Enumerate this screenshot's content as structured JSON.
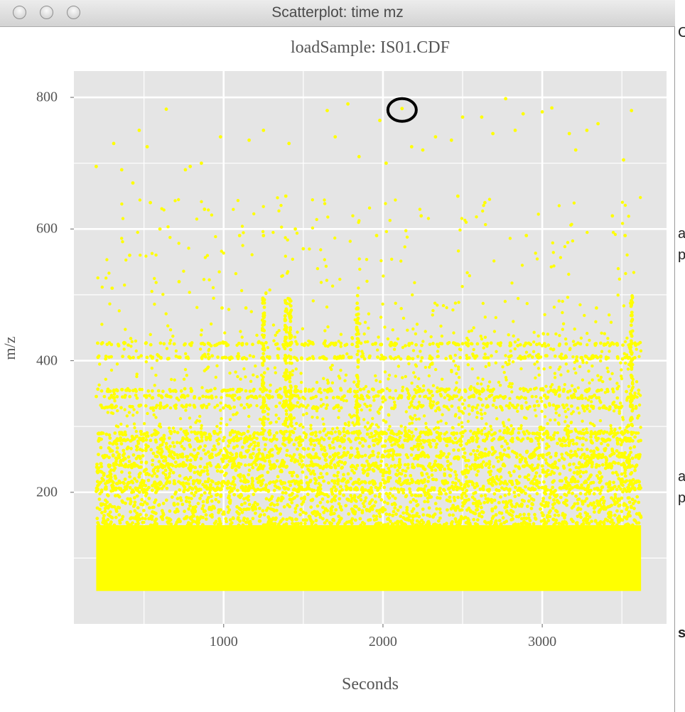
{
  "window": {
    "title": "Scatterplot: time mz",
    "buttons": [
      "close",
      "minimize",
      "zoom"
    ]
  },
  "colors": {
    "panel": "#e5e5e5",
    "grid": "#ffffff",
    "points": "#ffff00",
    "highlight_ring": "#000000"
  },
  "side_text": [
    "C",
    "a",
    "p",
    "a",
    "p",
    "s"
  ],
  "chart_data": {
    "type": "scatter",
    "title": "loadSample:  IS01.CDF",
    "xlabel": "Seconds",
    "ylabel": "m/z",
    "xlim": [
      60,
      3780
    ],
    "ylim": [
      0,
      840
    ],
    "xticks": [
      1000,
      2000,
      3000
    ],
    "yticks": [
      200,
      400,
      600,
      800
    ],
    "grid": true,
    "legend": "none",
    "highlighted_point": {
      "x": 2120,
      "y": 783
    },
    "x_range_observed": [
      200,
      3620
    ],
    "y_range_observed": [
      50,
      800
    ],
    "dense_bands_mz": [
      280,
      290,
      330,
      345,
      355,
      405,
      425,
      205,
      215,
      240,
      255
    ],
    "series": [
      {
        "points": [
          [
            200,
            695
          ],
          [
            310,
            730
          ],
          [
            360,
            690
          ],
          [
            430,
            670
          ],
          [
            470,
            750
          ],
          [
            520,
            725
          ],
          [
            640,
            782
          ],
          [
            790,
            695
          ],
          [
            880,
            630
          ],
          [
            980,
            740
          ],
          [
            1160,
            735
          ],
          [
            1250,
            750
          ],
          [
            1410,
            730
          ],
          [
            1450,
            600
          ],
          [
            1650,
            780
          ],
          [
            1700,
            740
          ],
          [
            1780,
            790
          ],
          [
            1850,
            710
          ],
          [
            1980,
            765
          ],
          [
            2020,
            700
          ],
          [
            2120,
            783
          ],
          [
            2180,
            725
          ],
          [
            2250,
            720
          ],
          [
            2330,
            740
          ],
          [
            2430,
            735
          ],
          [
            2500,
            770
          ],
          [
            2620,
            770
          ],
          [
            2690,
            745
          ],
          [
            2770,
            798
          ],
          [
            2830,
            750
          ],
          [
            2880,
            775
          ],
          [
            3000,
            778
          ],
          [
            3060,
            784
          ],
          [
            3170,
            745
          ],
          [
            3280,
            750
          ],
          [
            3350,
            760
          ],
          [
            3510,
            705
          ],
          [
            3560,
            780
          ],
          [
            1390,
            650
          ],
          [
            1250,
            590
          ],
          [
            1100,
            590
          ],
          [
            860,
            700
          ],
          [
            760,
            690
          ],
          [
            600,
            600
          ],
          [
            540,
            640
          ],
          [
            2470,
            650
          ],
          [
            2900,
            590
          ],
          [
            3340,
            480
          ],
          [
            1960,
            590
          ],
          [
            2240,
            620
          ],
          [
            2640,
            640
          ],
          [
            3440,
            620
          ],
          [
            3210,
            720
          ],
          [
            3520,
            590
          ],
          [
            1500,
            570
          ],
          [
            720,
            520
          ],
          [
            300,
            510
          ],
          [
            1140,
            480
          ],
          [
            990,
            480
          ],
          [
            410,
            560
          ]
        ]
      }
    ]
  }
}
